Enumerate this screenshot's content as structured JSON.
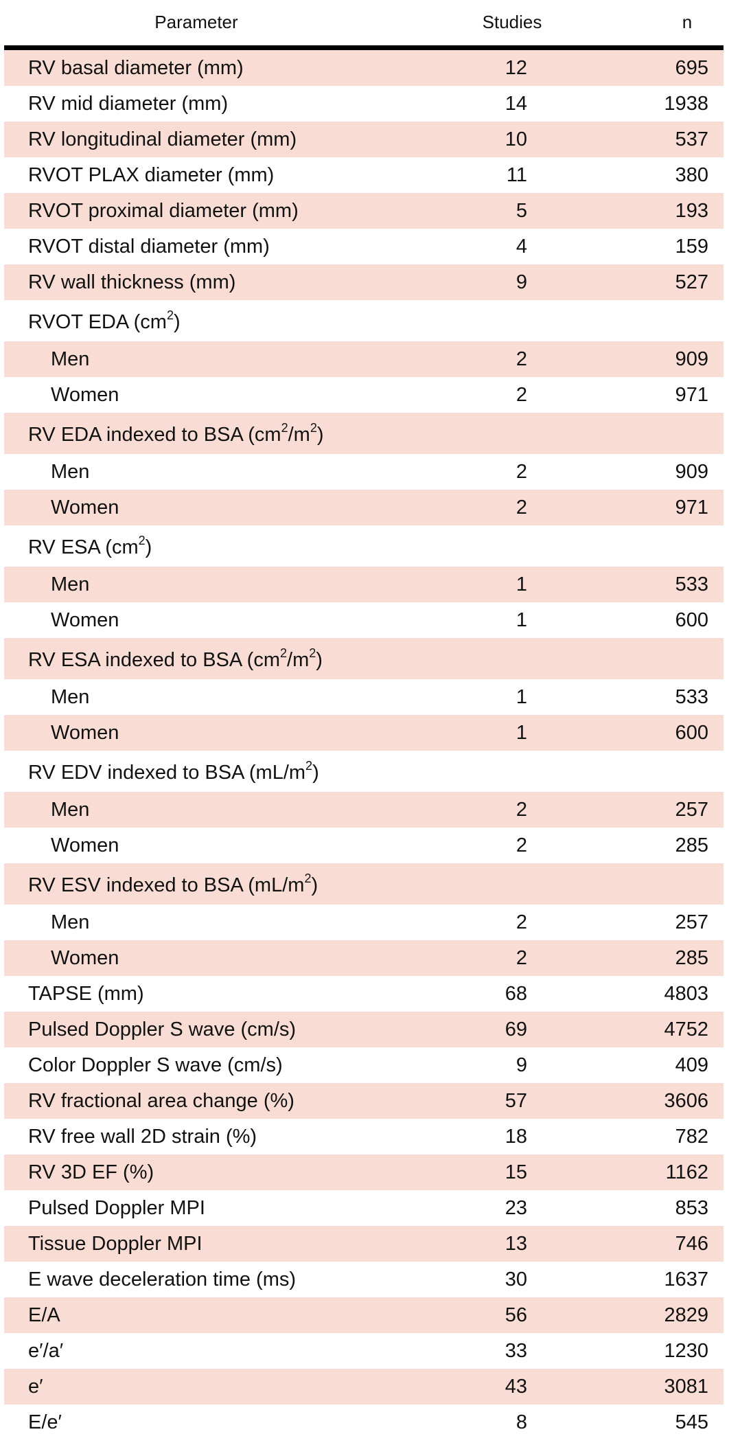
{
  "table": {
    "headers": {
      "parameter": "Parameter",
      "studies": "Studies",
      "n": "n"
    },
    "rows": [
      {
        "segments": [
          {
            "t": "RV basal diameter (mm)"
          }
        ],
        "studies": "12",
        "n": "695"
      },
      {
        "segments": [
          {
            "t": "RV mid diameter (mm)"
          }
        ],
        "studies": "14",
        "n": "1938"
      },
      {
        "segments": [
          {
            "t": "RV longitudinal diameter (mm)"
          }
        ],
        "studies": "10",
        "n": "537"
      },
      {
        "segments": [
          {
            "t": "RVOT PLAX diameter (mm)"
          }
        ],
        "studies": "11",
        "n": "380"
      },
      {
        "segments": [
          {
            "t": "RVOT proximal diameter (mm)"
          }
        ],
        "studies": "5",
        "n": "193"
      },
      {
        "segments": [
          {
            "t": "RVOT distal diameter (mm)"
          }
        ],
        "studies": "4",
        "n": "159"
      },
      {
        "segments": [
          {
            "t": "RV wall thickness (mm)"
          }
        ],
        "studies": "9",
        "n": "527"
      },
      {
        "segments": [
          {
            "t": "RVOT EDA (cm"
          },
          {
            "t": "2",
            "sup": true
          },
          {
            "t": ")"
          }
        ],
        "studies": "",
        "n": "",
        "group": true
      },
      {
        "segments": [
          {
            "t": "Men"
          }
        ],
        "studies": "2",
        "n": "909",
        "sub": true
      },
      {
        "segments": [
          {
            "t": "Women"
          }
        ],
        "studies": "2",
        "n": "971",
        "sub": true
      },
      {
        "segments": [
          {
            "t": "RV EDA indexed to BSA (cm"
          },
          {
            "t": "2",
            "sup": true
          },
          {
            "t": "/m"
          },
          {
            "t": "2",
            "sup": true
          },
          {
            "t": ")"
          }
        ],
        "studies": "",
        "n": "",
        "group": true
      },
      {
        "segments": [
          {
            "t": "Men"
          }
        ],
        "studies": "2",
        "n": "909",
        "sub": true
      },
      {
        "segments": [
          {
            "t": "Women"
          }
        ],
        "studies": "2",
        "n": "971",
        "sub": true
      },
      {
        "segments": [
          {
            "t": "RV ESA (cm"
          },
          {
            "t": "2",
            "sup": true
          },
          {
            "t": ")"
          }
        ],
        "studies": "",
        "n": "",
        "group": true
      },
      {
        "segments": [
          {
            "t": "Men"
          }
        ],
        "studies": "1",
        "n": "533",
        "sub": true
      },
      {
        "segments": [
          {
            "t": "Women"
          }
        ],
        "studies": "1",
        "n": "600",
        "sub": true
      },
      {
        "segments": [
          {
            "t": "RV ESA indexed to BSA (cm"
          },
          {
            "t": "2",
            "sup": true
          },
          {
            "t": "/m"
          },
          {
            "t": "2",
            "sup": true
          },
          {
            "t": ")"
          }
        ],
        "studies": "",
        "n": "",
        "group": true
      },
      {
        "segments": [
          {
            "t": "Men"
          }
        ],
        "studies": "1",
        "n": "533",
        "sub": true
      },
      {
        "segments": [
          {
            "t": "Women"
          }
        ],
        "studies": "1",
        "n": "600",
        "sub": true
      },
      {
        "segments": [
          {
            "t": "RV EDV indexed to BSA (mL/m"
          },
          {
            "t": "2",
            "sup": true
          },
          {
            "t": ")"
          }
        ],
        "studies": "",
        "n": "",
        "group": true
      },
      {
        "segments": [
          {
            "t": "Men"
          }
        ],
        "studies": "2",
        "n": "257",
        "sub": true
      },
      {
        "segments": [
          {
            "t": "Women"
          }
        ],
        "studies": "2",
        "n": "285",
        "sub": true
      },
      {
        "segments": [
          {
            "t": "RV ESV indexed to BSA (mL/m"
          },
          {
            "t": "2",
            "sup": true
          },
          {
            "t": ")"
          }
        ],
        "studies": "",
        "n": "",
        "group": true
      },
      {
        "segments": [
          {
            "t": "Men"
          }
        ],
        "studies": "2",
        "n": "257",
        "sub": true
      },
      {
        "segments": [
          {
            "t": "Women"
          }
        ],
        "studies": "2",
        "n": "285",
        "sub": true
      },
      {
        "segments": [
          {
            "t": "TAPSE (mm)"
          }
        ],
        "studies": "68",
        "n": "4803"
      },
      {
        "segments": [
          {
            "t": "Pulsed Doppler S wave (cm/s)"
          }
        ],
        "studies": "69",
        "n": "4752"
      },
      {
        "segments": [
          {
            "t": "Color Doppler S wave (cm/s)"
          }
        ],
        "studies": "9",
        "n": "409"
      },
      {
        "segments": [
          {
            "t": "RV fractional area change (%)"
          }
        ],
        "studies": "57",
        "n": "3606"
      },
      {
        "segments": [
          {
            "t": "RV free wall 2D strain (%)"
          }
        ],
        "studies": "18",
        "n": "782"
      },
      {
        "segments": [
          {
            "t": "RV 3D EF (%)"
          }
        ],
        "studies": "15",
        "n": "1162"
      },
      {
        "segments": [
          {
            "t": "Pulsed Doppler MPI"
          }
        ],
        "studies": "23",
        "n": "853"
      },
      {
        "segments": [
          {
            "t": "Tissue Doppler MPI"
          }
        ],
        "studies": "13",
        "n": "746"
      },
      {
        "segments": [
          {
            "t": "E wave deceleration time (ms)"
          }
        ],
        "studies": "30",
        "n": "1637"
      },
      {
        "segments": [
          {
            "t": "E/A"
          }
        ],
        "studies": "56",
        "n": "2829"
      },
      {
        "segments": [
          {
            "t": "e′/a′"
          }
        ],
        "studies": "33",
        "n": "1230"
      },
      {
        "segments": [
          {
            "t": "e′"
          }
        ],
        "studies": "43",
        "n": "3081"
      },
      {
        "segments": [
          {
            "t": "E/e′"
          }
        ],
        "studies": "8",
        "n": "545"
      }
    ]
  },
  "colors": {
    "stripe": "#f9ddd5",
    "rule": "#000000",
    "text": "#111111"
  }
}
